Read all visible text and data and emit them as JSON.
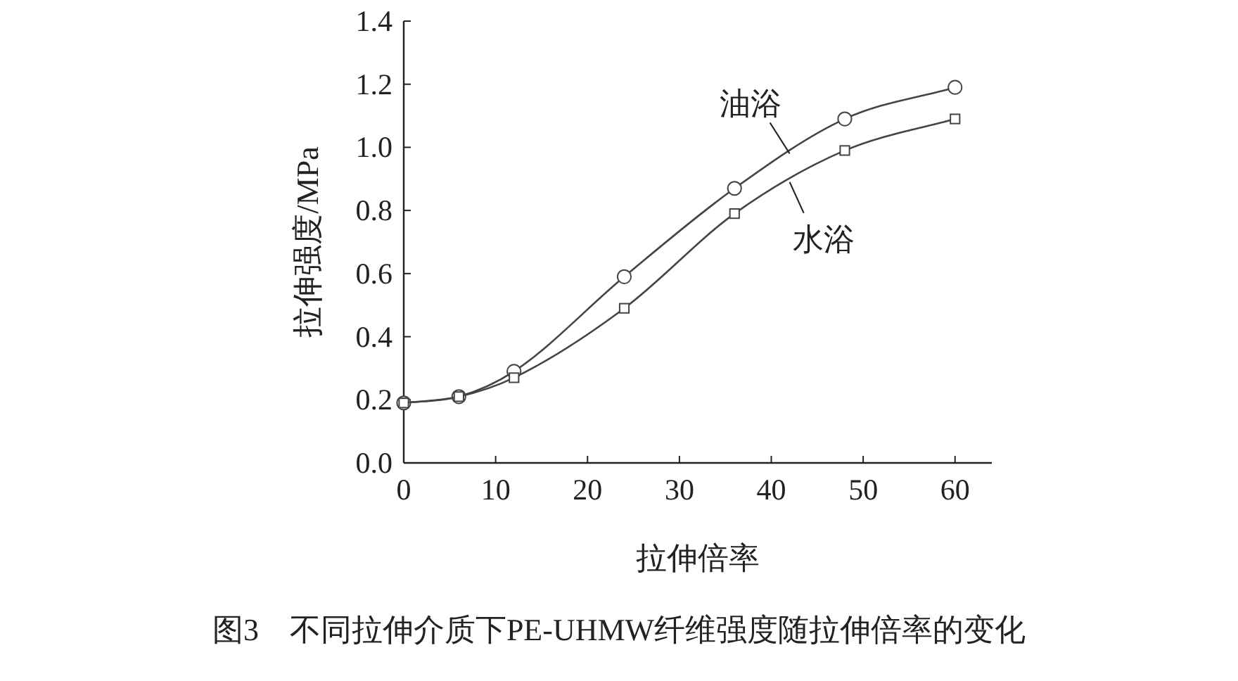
{
  "chart_data": {
    "type": "line",
    "xlabel": "拉伸倍率",
    "ylabel": "拉伸强度/MPa",
    "xlim": [
      0,
      64
    ],
    "xticks": [
      0,
      10,
      20,
      30,
      40,
      50,
      60
    ],
    "ylim": [
      0,
      1.4
    ],
    "yticks": [
      {
        "value": 0,
        "label": "0.0"
      },
      {
        "value": 0.2,
        "label": "0.2"
      },
      {
        "value": 0.4,
        "label": "0.4"
      },
      {
        "value": 0.6,
        "label": "0.6"
      },
      {
        "value": 0.8,
        "label": "0.8"
      },
      {
        "value": 1.0,
        "label": "1.0"
      },
      {
        "value": 1.2,
        "label": "1.2"
      },
      {
        "value": 1.4,
        "label": "1.4"
      }
    ],
    "x": [
      0,
      6,
      12,
      24,
      36,
      48,
      60
    ],
    "series": [
      {
        "name": "油浴",
        "color": "#444444",
        "marker": "circle",
        "values": [
          0.19,
          0.21,
          0.29,
          0.59,
          0.87,
          1.09,
          1.19
        ]
      },
      {
        "name": "水浴",
        "color": "#444444",
        "marker": "square",
        "values": [
          0.19,
          0.21,
          0.27,
          0.49,
          0.79,
          0.99,
          1.09
        ]
      }
    ],
    "annotations": [
      "图3　不同拉伸介质下PE-UHMW纤维强度随拉伸倍率的变化"
    ]
  }
}
